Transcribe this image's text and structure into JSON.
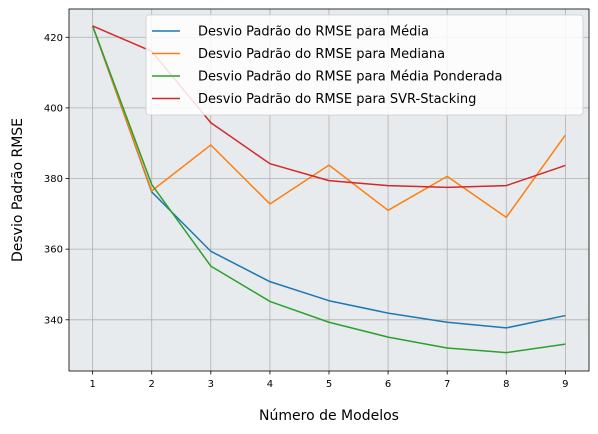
{
  "chart_data": {
    "type": "line",
    "title": "",
    "xlabel": "Número de Modelos",
    "ylabel": "Desvio Padrão RMSE",
    "x": [
      1,
      2,
      3,
      4,
      5,
      6,
      7,
      8,
      9
    ],
    "xlim": [
      0.6,
      9.4
    ],
    "ylim": [
      325.5,
      428
    ],
    "yticks": [
      340,
      360,
      380,
      400,
      420
    ],
    "grid": true,
    "legend_position": "top-right",
    "background": "#e8ebee",
    "series": [
      {
        "name": "Desvio Padrão do RMSE para Média",
        "color": "#1f77b4",
        "values": [
          423.2,
          376.2,
          359.4,
          350.8,
          345.4,
          341.9,
          339.3,
          337.7,
          341.2
        ]
      },
      {
        "name": "Desvio Padrão do RMSE para Mediana",
        "color": "#ff7f0e",
        "values": [
          423.2,
          376.5,
          389.5,
          372.8,
          383.8,
          371.0,
          380.6,
          369.0,
          392.3
        ]
      },
      {
        "name": "Desvio Padrão do RMSE para Média Ponderada",
        "color": "#2ca02c",
        "values": [
          423.2,
          378.3,
          355.2,
          345.2,
          339.3,
          335.1,
          332.0,
          330.7,
          333.1
        ]
      },
      {
        "name": "Desvio Padrão do RMSE para SVR-Stacking",
        "color": "#d62728",
        "values": [
          423.2,
          416.0,
          395.8,
          384.2,
          379.4,
          378.0,
          377.5,
          378.0,
          383.7
        ]
      }
    ]
  }
}
